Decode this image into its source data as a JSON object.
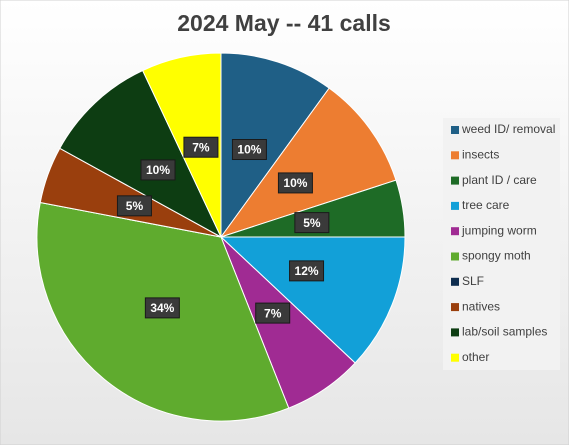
{
  "chart_data": {
    "type": "pie",
    "title": "2024 May -- 41 calls",
    "categories": [
      "weed ID/ removal",
      "insects",
      "plant ID / care",
      "tree care",
      "jumping worm",
      "spongy moth",
      "SLF",
      "natives",
      "lab/soil samples",
      "other"
    ],
    "values": [
      10,
      10,
      5,
      12,
      7,
      34,
      0,
      5,
      10,
      7
    ],
    "value_labels": [
      "10%",
      "10%",
      "5%",
      "12%",
      "7%",
      "34%",
      null,
      "5%",
      "10%",
      "7%"
    ],
    "colors": [
      "#1f5f86",
      "#ed7d31",
      "#1e6b26",
      "#12a0d8",
      "#a02b93",
      "#5fab2e",
      "#0e2d4f",
      "#9a3f0d",
      "#0d3d12",
      "#ffff00"
    ],
    "legend": "right"
  }
}
